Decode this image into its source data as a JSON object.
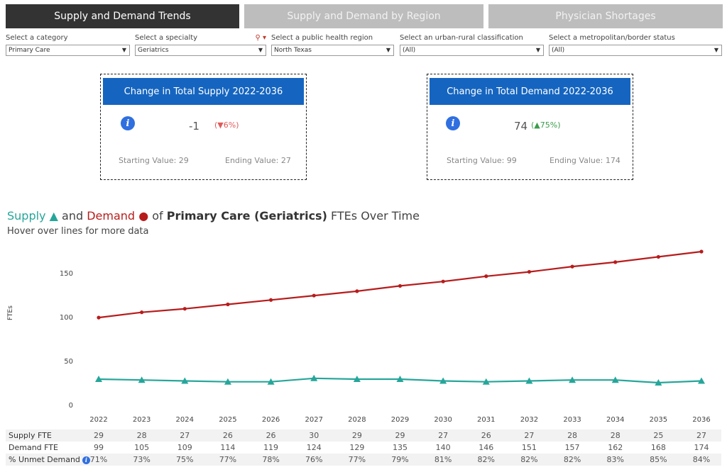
{
  "tabs": [
    {
      "label": "Supply and Demand Trends",
      "active": true
    },
    {
      "label": "Supply and Demand by Region",
      "active": false
    },
    {
      "label": "Physician Shortages",
      "active": false
    }
  ],
  "filters": [
    {
      "label": "Select a category",
      "value": "Primary Care"
    },
    {
      "label": "Select a specialty",
      "value": "Geriatrics"
    },
    {
      "label": "Select a public health region",
      "value": "North Texas"
    },
    {
      "label": "Select an urban-rural classification",
      "value": "(All)"
    },
    {
      "label": "Select a metropolitan/border status",
      "value": "(All)"
    }
  ],
  "supply_card": {
    "title": "Change in Total Supply 2022-2036",
    "change": "-1",
    "pct": "(▼6%)",
    "start": "Starting Value: 29",
    "end": "Ending Value: 27"
  },
  "demand_card": {
    "title": "Change in Total Demand 2022-2036",
    "change": "74",
    "pct": "(▲75%)",
    "start": "Starting Value: 99",
    "end": "Ending Value: 174"
  },
  "chart_title": {
    "supply_word": "Supply",
    "and_word": "and",
    "demand_word": "Demand",
    "of_word": "of",
    "bold_part": "Primary Care (Geriatrics)",
    "rest": "FTEs Over Time",
    "subtitle": "Hover over lines for more data"
  },
  "colors": {
    "supply": "#26a69a",
    "demand": "#b71c1c",
    "accent": "#1565c0"
  },
  "chart_data": {
    "type": "line",
    "ylabel": "FTEs",
    "x": [
      "2022",
      "2023",
      "2024",
      "2025",
      "2026",
      "2027",
      "2028",
      "2029",
      "2030",
      "2031",
      "2032",
      "2033",
      "2034",
      "2035",
      "2036"
    ],
    "ylim": [
      0,
      174
    ],
    "yticks": [
      0,
      50,
      100,
      150
    ],
    "series": [
      {
        "name": "Supply",
        "marker": "triangle",
        "values": [
          29,
          28,
          27,
          26,
          26,
          30,
          29,
          29,
          27,
          26,
          27,
          28,
          28,
          25,
          27
        ]
      },
      {
        "name": "Demand",
        "marker": "circle",
        "values": [
          99,
          105,
          109,
          114,
          119,
          124,
          129,
          135,
          140,
          146,
          151,
          157,
          162,
          168,
          174
        ]
      }
    ]
  },
  "table": {
    "rows": [
      {
        "label": "Supply FTE",
        "values": [
          "29",
          "28",
          "27",
          "26",
          "26",
          "30",
          "29",
          "29",
          "27",
          "26",
          "27",
          "28",
          "28",
          "25",
          "27"
        ]
      },
      {
        "label": "Demand FTE",
        "values": [
          "99",
          "105",
          "109",
          "114",
          "119",
          "124",
          "129",
          "135",
          "140",
          "146",
          "151",
          "157",
          "162",
          "168",
          "174"
        ]
      },
      {
        "label": "% Unmet Demand",
        "values": [
          "71%",
          "73%",
          "75%",
          "77%",
          "78%",
          "76%",
          "77%",
          "79%",
          "81%",
          "82%",
          "82%",
          "82%",
          "83%",
          "85%",
          "84%"
        ]
      }
    ]
  }
}
